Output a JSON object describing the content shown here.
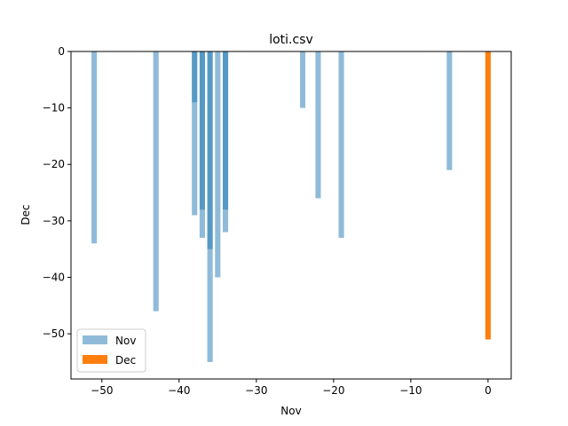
{
  "chart_data": {
    "type": "bar",
    "title": "loti.csv",
    "xlabel": "Nov",
    "ylabel": "Dec",
    "xlim": [
      -54,
      3
    ],
    "ylim": [
      -58,
      0
    ],
    "xticks": [
      -50,
      -40,
      -30,
      -20,
      -10,
      0
    ],
    "yticks": [
      0,
      -10,
      -20,
      -30,
      -40,
      -50
    ],
    "xtick_labels": [
      "−50",
      "−40",
      "−30",
      "−20",
      "−10",
      "0"
    ],
    "ytick_labels": [
      "0",
      "−10",
      "−20",
      "−30",
      "−40",
      "−50"
    ],
    "grid": false,
    "legend_position": "lower-left",
    "bar_width": 0.7,
    "series": [
      {
        "name": "Nov",
        "color": "#1f77b4",
        "opacity": 0.5,
        "x": [
          -51,
          -43,
          -38,
          -38,
          -37,
          -37,
          -36,
          -36,
          -35,
          -34,
          -34,
          -24,
          -22,
          -19,
          -5
        ],
        "values": [
          -34,
          -46,
          -29,
          -9,
          -33,
          -28,
          -55,
          -35,
          -40,
          -32,
          -28,
          -10,
          -26,
          -33,
          -21
        ]
      },
      {
        "name": "Dec",
        "color": "#ff7f0e",
        "opacity": 1.0,
        "x": [
          0
        ],
        "values": [
          -51
        ]
      }
    ]
  }
}
